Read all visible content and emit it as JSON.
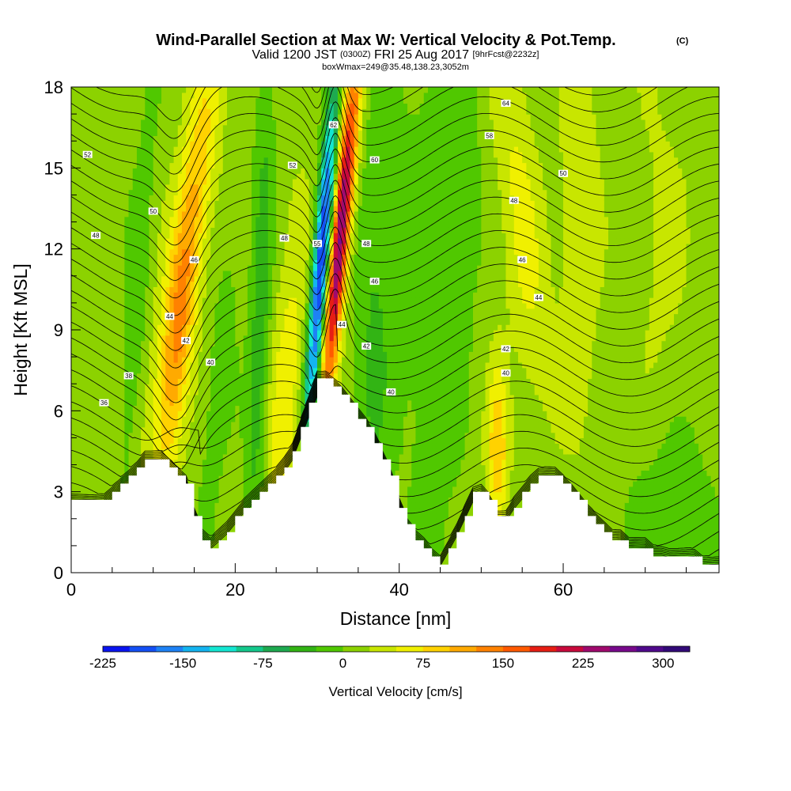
{
  "header": {
    "title_main": "Wind-Parallel Section at Max W: Vertical Velocity & Pot.Temp.",
    "title_mark": "(C)",
    "valid_a": "Valid 1200 JST",
    "valid_b": "(0300Z)",
    "valid_c": "FRI 25 Aug 2017",
    "valid_d": "[9hrFcst@2232z]",
    "box_info": "boxWmax=249@35.48,138.23,3052m"
  },
  "chart_data": {
    "type": "heatmap",
    "xlabel": "Distance [nm]",
    "ylabel": "Height [Kft MSL]",
    "xlim": [
      0,
      79
    ],
    "ylim": [
      0,
      18
    ],
    "xticks": [
      "0",
      "20",
      "40",
      "60"
    ],
    "yticks": [
      "0",
      "3",
      "6",
      "9",
      "12",
      "15",
      "18"
    ],
    "colorbar": {
      "title": "Vertical Velocity [cm/s]",
      "tick_labels": [
        "-225",
        "-150",
        "-75",
        "0",
        "75",
        "150",
        "225",
        "300"
      ],
      "min": -225,
      "max": 325,
      "step": 25,
      "colors": [
        "#0a14f0",
        "#1450f5",
        "#1e82f5",
        "#14b4f0",
        "#14e6d2",
        "#14c88c",
        "#1eaa50",
        "#32b414",
        "#50c800",
        "#8cd200",
        "#c8e600",
        "#f0f000",
        "#ffd200",
        "#ffaa00",
        "#ff8200",
        "#ff5a00",
        "#e61e14",
        "#c80a3c",
        "#a00a6e",
        "#780a8c",
        "#500a8c",
        "#320a78"
      ]
    },
    "cross_section_peak": {
      "distance": 31,
      "height": 7.2
    },
    "terrain": [
      {
        "x": 0,
        "h": 2.6
      },
      {
        "x": 4,
        "h": 2.6
      },
      {
        "x": 5,
        "h": 2.9
      },
      {
        "x": 6,
        "h": 3.2
      },
      {
        "x": 7,
        "h": 3.5
      },
      {
        "x": 8,
        "h": 3.8
      },
      {
        "x": 9,
        "h": 4.2
      },
      {
        "x": 11,
        "h": 4.2
      },
      {
        "x": 12,
        "h": 3.9
      },
      {
        "x": 13,
        "h": 3.6
      },
      {
        "x": 14,
        "h": 3.3
      },
      {
        "x": 14.5,
        "h": 2.7
      },
      {
        "x": 15,
        "h": 2.1
      },
      {
        "x": 16,
        "h": 1.3
      },
      {
        "x": 17,
        "h": 1.0
      },
      {
        "x": 18,
        "h": 1.3
      },
      {
        "x": 19,
        "h": 1.6
      },
      {
        "x": 20,
        "h": 2.0
      },
      {
        "x": 21,
        "h": 2.4
      },
      {
        "x": 22,
        "h": 2.7
      },
      {
        "x": 23,
        "h": 3.0
      },
      {
        "x": 24,
        "h": 3.3
      },
      {
        "x": 25,
        "h": 3.6
      },
      {
        "x": 26,
        "h": 4.0
      },
      {
        "x": 27,
        "h": 4.5
      },
      {
        "x": 28,
        "h": 5.4
      },
      {
        "x": 29,
        "h": 6.3
      },
      {
        "x": 30,
        "h": 7.2
      },
      {
        "x": 31,
        "h": 7.2
      },
      {
        "x": 32,
        "h": 6.9
      },
      {
        "x": 33,
        "h": 6.6
      },
      {
        "x": 34,
        "h": 6.2
      },
      {
        "x": 35,
        "h": 5.8
      },
      {
        "x": 36,
        "h": 5.4
      },
      {
        "x": 37,
        "h": 4.9
      },
      {
        "x": 38,
        "h": 4.2
      },
      {
        "x": 39,
        "h": 3.5
      },
      {
        "x": 40,
        "h": 2.5
      },
      {
        "x": 41,
        "h": 1.7
      },
      {
        "x": 42,
        "h": 1.3
      },
      {
        "x": 43,
        "h": 1.0
      },
      {
        "x": 44,
        "h": 0.6
      },
      {
        "x": 45,
        "h": 0.3
      },
      {
        "x": 46,
        "h": 0.9
      },
      {
        "x": 47,
        "h": 1.5
      },
      {
        "x": 48,
        "h": 2.2
      },
      {
        "x": 49,
        "h": 2.9
      },
      {
        "x": 50,
        "h": 3.0
      },
      {
        "x": 51,
        "h": 2.6
      },
      {
        "x": 52,
        "h": 2.0
      },
      {
        "x": 53,
        "h": 2.0
      },
      {
        "x": 54,
        "h": 2.5
      },
      {
        "x": 55,
        "h": 2.9
      },
      {
        "x": 56,
        "h": 3.3
      },
      {
        "x": 57,
        "h": 3.6
      },
      {
        "x": 59,
        "h": 3.6
      },
      {
        "x": 60,
        "h": 3.3
      },
      {
        "x": 61,
        "h": 3.0
      },
      {
        "x": 62,
        "h": 2.6
      },
      {
        "x": 63,
        "h": 2.2
      },
      {
        "x": 64,
        "h": 1.9
      },
      {
        "x": 65,
        "h": 1.6
      },
      {
        "x": 66,
        "h": 1.3
      },
      {
        "x": 67,
        "h": 1.3
      },
      {
        "x": 68,
        "h": 1.0
      },
      {
        "x": 70,
        "h": 1.0
      },
      {
        "x": 71,
        "h": 0.7
      },
      {
        "x": 72,
        "h": 0.7
      },
      {
        "x": 73,
        "h": 0.6
      },
      {
        "x": 75,
        "h": 0.6
      },
      {
        "x": 76,
        "h": 0.6
      },
      {
        "x": 77,
        "h": 0.3
      },
      {
        "x": 79,
        "h": 0.3
      }
    ],
    "velocity_features": [
      {
        "x": 14,
        "y": 12,
        "sx": 1.6,
        "sy": 6,
        "tilt": 0.45,
        "v": 85
      },
      {
        "x": 13,
        "y": 8,
        "sx": 1.2,
        "sy": 4,
        "tilt": 0.3,
        "v": 55
      },
      {
        "x": 23,
        "y": 9,
        "sx": 0.9,
        "sy": 7,
        "tilt": 0.1,
        "v": -55
      },
      {
        "x": 26,
        "y": 6,
        "sx": 1.4,
        "sy": 5,
        "tilt": 0.2,
        "v": 55
      },
      {
        "x": 30.5,
        "y": 11.5,
        "sx": 0.7,
        "sy": 4.5,
        "tilt": 0.25,
        "v": -230
      },
      {
        "x": 32.8,
        "y": 12.5,
        "sx": 0.8,
        "sy": 4.5,
        "tilt": 0.3,
        "v": 250
      },
      {
        "x": 37,
        "y": 9,
        "sx": 1.8,
        "sy": 7,
        "tilt": 0.1,
        "v": -40
      },
      {
        "x": 44,
        "y": 10,
        "sx": 2.5,
        "sy": 8,
        "tilt": 0.0,
        "v": -30
      },
      {
        "x": 52,
        "y": 4.5,
        "sx": 0.9,
        "sy": 2.2,
        "tilt": 0.0,
        "v": 85
      },
      {
        "x": 55,
        "y": 13,
        "sx": 1.8,
        "sy": 5,
        "tilt": -0.3,
        "v": 45
      },
      {
        "x": 62,
        "y": 13,
        "sx": 1.6,
        "sy": 5,
        "tilt": 0.0,
        "v": 40
      },
      {
        "x": 73,
        "y": 2.5,
        "sx": 4,
        "sy": 2.5,
        "tilt": 0.0,
        "v": -30
      },
      {
        "x": 72,
        "y": 12,
        "sx": 2.5,
        "sy": 6,
        "tilt": 0.0,
        "v": 18
      },
      {
        "x": 8,
        "y": 10,
        "sx": 1.0,
        "sy": 6,
        "tilt": 0.2,
        "v": -30
      },
      {
        "x": 18,
        "y": 7,
        "sx": 1.2,
        "sy": 5,
        "tilt": 0.3,
        "v": -25
      },
      {
        "x": 48,
        "y": 15,
        "sx": 1.5,
        "sy": 4,
        "tilt": 0.0,
        "v": -25
      }
    ],
    "isentropes": {
      "theta_min": 30,
      "theta_max": 64,
      "interval": 1,
      "contour_labels": [
        {
          "x": 4,
          "y": 6.3,
          "text": "36"
        },
        {
          "x": 7,
          "y": 7.3,
          "text": "38"
        },
        {
          "x": 17,
          "y": 7.8,
          "text": "40"
        },
        {
          "x": 14,
          "y": 8.6,
          "text": "42"
        },
        {
          "x": 12,
          "y": 9.5,
          "text": "44"
        },
        {
          "x": 15,
          "y": 11.6,
          "text": "46"
        },
        {
          "x": 3,
          "y": 12.5,
          "text": "48"
        },
        {
          "x": 10,
          "y": 13.4,
          "text": "50"
        },
        {
          "x": 2,
          "y": 15.5,
          "text": "52"
        },
        {
          "x": 26,
          "y": 12.4,
          "text": "48"
        },
        {
          "x": 27,
          "y": 15.1,
          "text": "52"
        },
        {
          "x": 32,
          "y": 16.6,
          "text": "62"
        },
        {
          "x": 37,
          "y": 15.3,
          "text": "60"
        },
        {
          "x": 30,
          "y": 12.2,
          "text": "55"
        },
        {
          "x": 36,
          "y": 12.2,
          "text": "48"
        },
        {
          "x": 37,
          "y": 10.8,
          "text": "46"
        },
        {
          "x": 33,
          "y": 9.2,
          "text": "44"
        },
        {
          "x": 36,
          "y": 8.4,
          "text": "42"
        },
        {
          "x": 39,
          "y": 6.7,
          "text": "40"
        },
        {
          "x": 53,
          "y": 17.4,
          "text": "64"
        },
        {
          "x": 51,
          "y": 16.2,
          "text": "58"
        },
        {
          "x": 60,
          "y": 14.8,
          "text": "50"
        },
        {
          "x": 54,
          "y": 13.8,
          "text": "48"
        },
        {
          "x": 55,
          "y": 11.6,
          "text": "46"
        },
        {
          "x": 57,
          "y": 10.2,
          "text": "44"
        },
        {
          "x": 53,
          "y": 8.3,
          "text": "42"
        },
        {
          "x": 53,
          "y": 7.4,
          "text": "40"
        }
      ]
    }
  }
}
